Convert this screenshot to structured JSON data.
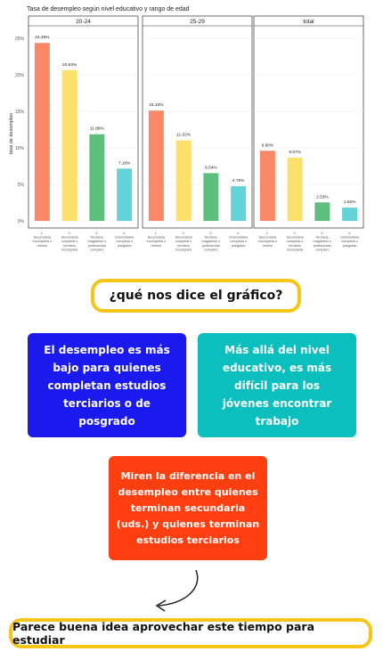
{
  "chart_data": {
    "type": "bar",
    "title": "Tasa de desempleo según nivel educativo y rango de edad",
    "ylabel": "tasa de desempleo",
    "ylim": [
      0,
      27
    ],
    "yticks": [
      "0%",
      "5%",
      "10%",
      "15%",
      "20%",
      "25%"
    ],
    "ytick_values": [
      0,
      5,
      10,
      15,
      20,
      25
    ],
    "grid": true,
    "categories": [
      "1. Secundaria incompleta o menos",
      "2. Secundaria completa o terciario incompleta",
      "3. Terciaria, magisterio o profesorado completo",
      "4. Universitaria completa o posgrado"
    ],
    "colors": [
      "#f98866",
      "#fbe06b",
      "#5cbf7d",
      "#63d3d8"
    ],
    "panels": [
      {
        "title": "20-24",
        "values": [
          24.36,
          20.63,
          11.86,
          7.16
        ],
        "labels": [
          "24.36%",
          "20.63%",
          "11.86%",
          "7.16%"
        ]
      },
      {
        "title": "25-29",
        "values": [
          15.1,
          11.02,
          6.54,
          4.75
        ],
        "labels": [
          "15.10%",
          "11.02%",
          "6.54%",
          "4.75%"
        ]
      },
      {
        "title": "total",
        "values": [
          9.6,
          8.67,
          2.53,
          1.82
        ],
        "labels": [
          "9.60%",
          "8.67%",
          "2.53%",
          "1.82%"
        ]
      }
    ]
  },
  "question": "¿qué nos dice el gráfico?",
  "cards": {
    "blue": "El desempleo es más bajo para quienes completan estudios terciarios o de posgrado",
    "teal": "Más allá del nivel educativo, es más difícil para los jóvenes encontrar trabajo",
    "orange": "Miren la diferencia en el desempleo entre quienes terminan secundaria (uds.) y quienes terminan estudios terciarios"
  },
  "conclusion": "Parece buena idea aprovechar este tiempo para estudiar",
  "colors": {
    "blue": "#1a1aee",
    "teal": "#0bbfbf",
    "orange": "#ff3f10",
    "yellow_border": "#f5c518"
  }
}
